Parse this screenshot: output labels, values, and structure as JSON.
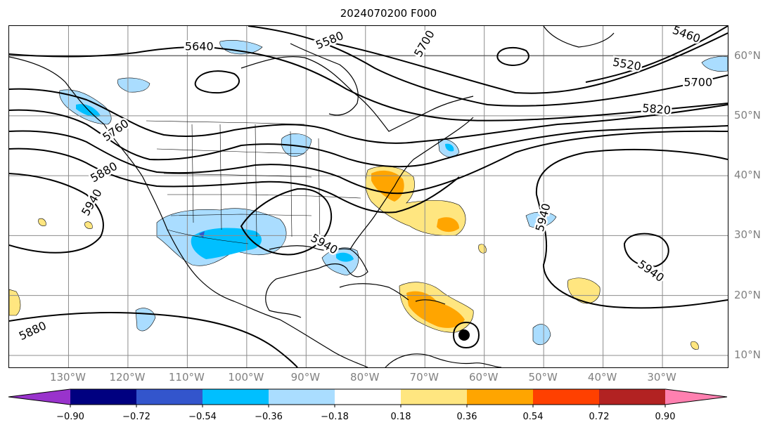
{
  "title": "2024070200 F000",
  "map": {
    "lon_range": [
      -140,
      -19
    ],
    "lat_range": [
      8,
      65
    ],
    "lon_ticks": [
      {
        "value": -130,
        "label": "130°W"
      },
      {
        "value": -120,
        "label": "120°W"
      },
      {
        "value": -110,
        "label": "110°W"
      },
      {
        "value": -100,
        "label": "100°W"
      },
      {
        "value": -90,
        "label": "90°W"
      },
      {
        "value": -80,
        "label": "80°W"
      },
      {
        "value": -70,
        "label": "70°W"
      },
      {
        "value": -60,
        "label": "60°W"
      },
      {
        "value": -50,
        "label": "50°W"
      },
      {
        "value": -40,
        "label": "40°W"
      },
      {
        "value": -30,
        "label": "30°W"
      }
    ],
    "lat_ticks": [
      {
        "value": 60,
        "label": "60°N"
      },
      {
        "value": 50,
        "label": "50°N"
      },
      {
        "value": 40,
        "label": "40°N"
      },
      {
        "value": 30,
        "label": "30°N"
      },
      {
        "value": 20,
        "label": "20°N"
      },
      {
        "value": 10,
        "label": "10°N"
      }
    ],
    "grid": true,
    "contour_labels": [
      {
        "text": "5640",
        "lon": -108,
        "lat": 61.5,
        "rot": 0
      },
      {
        "text": "5580",
        "lon": -86,
        "lat": 62.5,
        "rot": 22
      },
      {
        "text": "5700",
        "lon": -70,
        "lat": 62.0,
        "rot": 60
      },
      {
        "text": "5460",
        "lon": -26,
        "lat": 63.5,
        "rot": -20
      },
      {
        "text": "5520",
        "lon": -36,
        "lat": 58.5,
        "rot": -10
      },
      {
        "text": "5700",
        "lon": -24,
        "lat": 55.5,
        "rot": 0
      },
      {
        "text": "5820",
        "lon": -31,
        "lat": 51.0,
        "rot": -5
      },
      {
        "text": "5760",
        "lon": -122,
        "lat": 47.5,
        "rot": 35
      },
      {
        "text": "5880",
        "lon": -124,
        "lat": 40.5,
        "rot": 30
      },
      {
        "text": "5940",
        "lon": -126,
        "lat": 35.5,
        "rot": 60
      },
      {
        "text": "5940",
        "lon": -87,
        "lat": 28.5,
        "rot": -30
      },
      {
        "text": "5940",
        "lon": -50,
        "lat": 33.0,
        "rot": 75
      },
      {
        "text": "5940",
        "lon": -32,
        "lat": 24.0,
        "rot": -35
      },
      {
        "text": "5880",
        "lon": -136,
        "lat": 14.0,
        "rot": 25
      }
    ],
    "storm_marker": {
      "lon": -64.5,
      "lat": 13.5
    }
  },
  "colorbar": {
    "colors": [
      "#9933cc",
      "#000080",
      "#3355cc",
      "#00bfff",
      "#aaddff",
      "#ffffff",
      "#ffe680",
      "#ffa500",
      "#ff4000",
      "#b22222",
      "#ff80b0"
    ],
    "labels": [
      "−0.90",
      "−0.72",
      "−0.54",
      "−0.36",
      "−0.18",
      "0.18",
      "0.36",
      "0.54",
      "0.72",
      "0.90"
    ]
  }
}
